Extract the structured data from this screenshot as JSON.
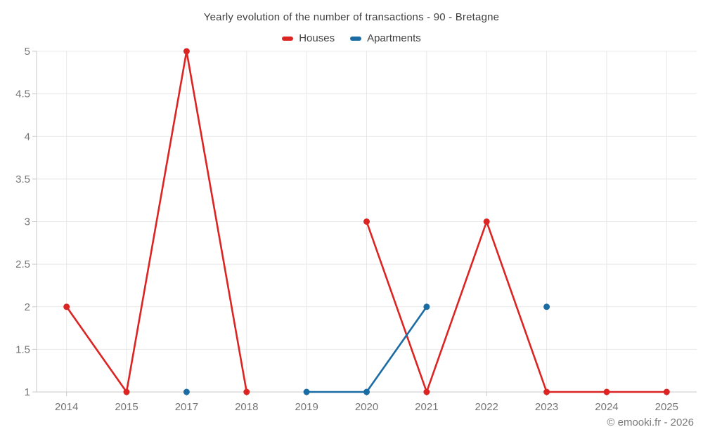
{
  "chart_data": {
    "type": "line",
    "title": "Yearly evolution of the number of transactions - 90 - Bretagne",
    "categories": [
      "2014",
      "2015",
      "2017",
      "2018",
      "2019",
      "2020",
      "2021",
      "2022",
      "2023",
      "2024",
      "2025"
    ],
    "series": [
      {
        "name": "Houses",
        "color": "#dc2423",
        "values": [
          2,
          1,
          5,
          1,
          null,
          3,
          1,
          3,
          1,
          1,
          1
        ]
      },
      {
        "name": "Apartments",
        "color": "#1a6ca4",
        "values": [
          null,
          null,
          1,
          null,
          1,
          1,
          2,
          null,
          2,
          null,
          null
        ]
      }
    ],
    "xlabel": "",
    "ylabel": "",
    "ylim": [
      1,
      5
    ],
    "yticks": [
      1,
      1.5,
      2,
      2.5,
      3,
      3.5,
      4,
      4.5,
      5
    ],
    "grid": true,
    "legend_position": "top"
  },
  "footer": {
    "copyright": "© emooki.fr - 2026"
  },
  "colors": {
    "grid": "#e8e8e8",
    "axis": "#c9c9c9",
    "tick": "#c9c9c9",
    "tick_label": "#757575",
    "title_text": "#404040",
    "credit_text": "#7a7a7a"
  }
}
